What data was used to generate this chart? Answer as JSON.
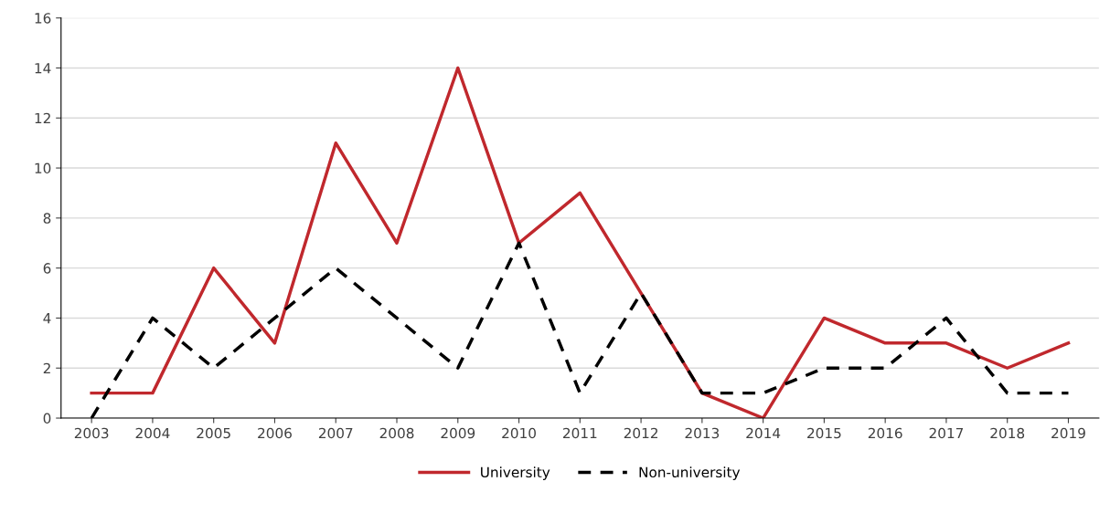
{
  "chart_data": {
    "type": "line",
    "categories": [
      "2003",
      "2004",
      "2005",
      "2006",
      "2007",
      "2008",
      "2009",
      "2010",
      "2011",
      "2012",
      "2013",
      "2014",
      "2015",
      "2016",
      "2017",
      "2018",
      "2019"
    ],
    "series": [
      {
        "name": "University",
        "color": "#c0282d",
        "line_style": "solid",
        "values": [
          1,
          1,
          6,
          3,
          11,
          7,
          14,
          7,
          9,
          5,
          1,
          0,
          4,
          3,
          3,
          2,
          3
        ]
      },
      {
        "name": "Non-university",
        "color": "#000000",
        "line_style": "dashed",
        "values": [
          0,
          4,
          2,
          4,
          6,
          4,
          2,
          7,
          1,
          5,
          1,
          1,
          2,
          2,
          4,
          1,
          1
        ]
      }
    ],
    "ylim": [
      0,
      16
    ],
    "yticks": [
      0,
      2,
      4,
      6,
      8,
      10,
      12,
      14,
      16
    ],
    "grid": "y",
    "legend": "bottom",
    "marker": "none"
  }
}
